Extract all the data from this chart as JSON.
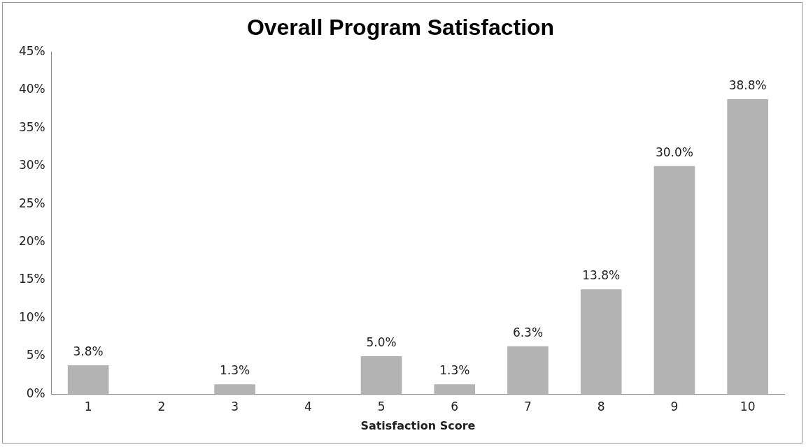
{
  "chart_data": {
    "type": "bar",
    "title": "Overall Program Satisfaction",
    "xlabel": "Satisfaction Score",
    "categories": [
      "1",
      "2",
      "3",
      "4",
      "5",
      "6",
      "7",
      "8",
      "9",
      "10"
    ],
    "values": [
      3.8,
      0,
      1.3,
      0,
      5.0,
      1.3,
      6.3,
      13.8,
      30.0,
      38.8
    ],
    "value_labels": [
      "3.8%",
      null,
      "1.3%",
      null,
      "5.0%",
      "1.3%",
      "6.3%",
      "13.8%",
      "30.0%",
      "38.8%"
    ],
    "color": "#b3b3b3",
    "ylim": [
      0,
      45
    ],
    "yticks": [
      {
        "value": 0,
        "label": "0%"
      },
      {
        "value": 5,
        "label": "5%"
      },
      {
        "value": 10,
        "label": "10%"
      },
      {
        "value": 15,
        "label": "15%"
      },
      {
        "value": 20,
        "label": "20%"
      },
      {
        "value": 25,
        "label": "25%"
      },
      {
        "value": 30,
        "label": "30%"
      },
      {
        "value": 35,
        "label": "35%"
      },
      {
        "value": 40,
        "label": "40%"
      },
      {
        "value": 45,
        "label": "45%"
      }
    ],
    "grid": false,
    "legend": false
  }
}
